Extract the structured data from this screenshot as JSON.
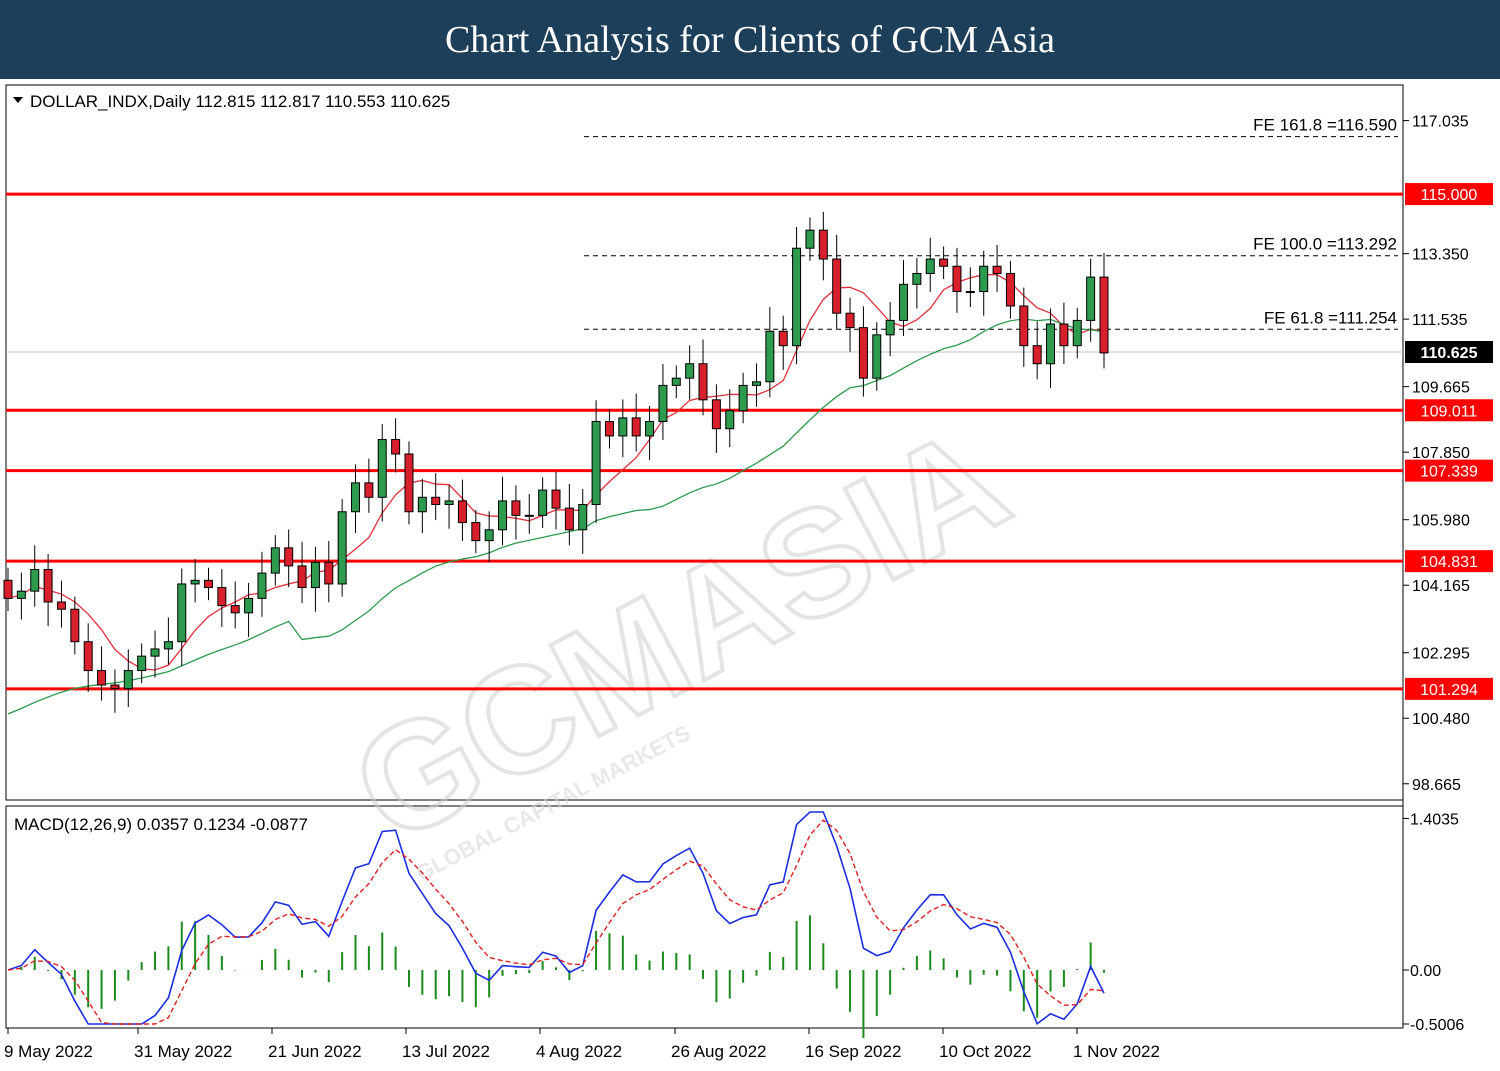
{
  "banner": {
    "title": "Chart Analysis for Clients of GCM Asia"
  },
  "chart_data": [
    {
      "type": "candlestick",
      "title": "DOLLAR_INDX,Daily  112.815 112.817 110.553 110.625",
      "price_ticks": [
        "117.035",
        "113.350",
        "111.535",
        "109.665",
        "107.850",
        "105.980",
        "104.165",
        "102.295",
        "100.480",
        "98.665"
      ],
      "current_price": {
        "label": "110.625",
        "value": 110.625
      },
      "support_resistance": [
        {
          "label": "115.000",
          "value": 115.0
        },
        {
          "label": "109.011",
          "value": 109.011
        },
        {
          "label": "107.339",
          "value": 107.339
        },
        {
          "label": "104.831",
          "value": 104.831
        },
        {
          "label": "101.294",
          "value": 101.294
        }
      ],
      "fib_extensions": [
        {
          "label": "FE 161.8 =116.590",
          "value": 116.59
        },
        {
          "label": "FE 100.0 =113.292",
          "value": 113.292
        },
        {
          "label": "FE 61.8 =111.254",
          "value": 111.254
        }
      ],
      "x_ticks": [
        "9 May 2022",
        "31 May 2022",
        "21 Jun 2022",
        "13 Jul 2022",
        "4 Aug 2022",
        "26 Aug 2022",
        "16 Sep 2022",
        "10 Oct 2022",
        "1 Nov 2022"
      ],
      "closes": [
        103.8,
        104.0,
        104.6,
        103.7,
        103.5,
        102.6,
        101.8,
        101.4,
        101.3,
        101.8,
        102.2,
        102.4,
        102.6,
        104.2,
        104.3,
        104.1,
        103.6,
        103.4,
        103.8,
        104.5,
        105.2,
        104.7,
        104.1,
        104.8,
        104.2,
        106.2,
        107.0,
        106.6,
        108.2,
        107.8,
        106.2,
        106.6,
        106.4,
        106.5,
        105.9,
        105.4,
        105.7,
        106.5,
        106.1,
        106.1,
        106.8,
        106.3,
        105.7,
        106.4,
        108.7,
        108.3,
        108.8,
        108.3,
        108.7,
        109.7,
        109.9,
        110.3,
        109.3,
        108.5,
        109.0,
        109.7,
        109.8,
        111.2,
        110.8,
        113.5,
        114.0,
        113.2,
        111.7,
        111.3,
        109.9,
        111.1,
        111.5,
        112.5,
        112.8,
        113.2,
        113.0,
        112.3,
        112.3,
        113.0,
        112.8,
        111.9,
        110.8,
        110.3,
        111.4,
        110.8,
        111.5,
        112.7,
        110.6
      ],
      "ma_red": {
        "label": "",
        "color": "#e0303c"
      },
      "ma_green": {
        "label": "",
        "color": "#2e9a4e"
      },
      "resistance_color": "#ff0000",
      "macd": {
        "title": "MACD(12,26,9) 0.0357 0.1234 -0.0877",
        "ticks": [
          "1.4035",
          "0.00",
          "-0.5006"
        ],
        "macd_color": "#1a2ee0",
        "signal_color": "#e02020",
        "hist_color": "#1a8a1a"
      }
    }
  ],
  "watermark": {
    "brand": "GCMASIA",
    "sub": "GLOBAL CAPITAL MARKETS"
  }
}
